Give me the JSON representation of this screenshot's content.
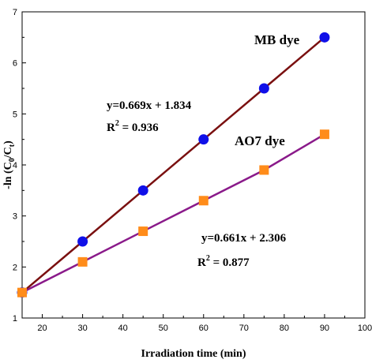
{
  "chart_data": {
    "type": "scatter",
    "xlabel": "Irradiation time (min)",
    "ylabel": "-ln (C",
    "ylabel_sub0": "0",
    "ylabel_mid": "/C",
    "ylabel_sub1": "t",
    "ylabel_end": ")",
    "xlim": [
      15,
      100
    ],
    "ylim": [
      1,
      7
    ],
    "xticks": [
      20,
      30,
      40,
      50,
      60,
      70,
      80,
      90,
      100
    ],
    "yticks": [
      1,
      2,
      3,
      4,
      5,
      6,
      7
    ],
    "grid": false,
    "series": [
      {
        "name": "MB dye",
        "marker": "circle",
        "color": "#1010e8",
        "line_color": "#7a1010",
        "x": [
          15,
          30,
          45,
          60,
          75,
          90
        ],
        "y": [
          1.5,
          2.5,
          3.5,
          4.5,
          5.5,
          6.5
        ],
        "equation": "y=0.669x + 1.834",
        "r2_label": "R",
        "r2_sup": "2",
        "r2_value": " =  0.936"
      },
      {
        "name": "AO7 dye",
        "marker": "square",
        "color": "#ff8c1a",
        "line_color": "#8a1a8a",
        "x": [
          15,
          30,
          45,
          60,
          75,
          90
        ],
        "y": [
          1.5,
          2.1,
          2.7,
          3.3,
          3.9,
          4.6
        ],
        "equation": "y=0.661x + 2.306",
        "r2_label": "R",
        "r2_sup": "2",
        "r2_value": " = 0.877"
      }
    ]
  }
}
